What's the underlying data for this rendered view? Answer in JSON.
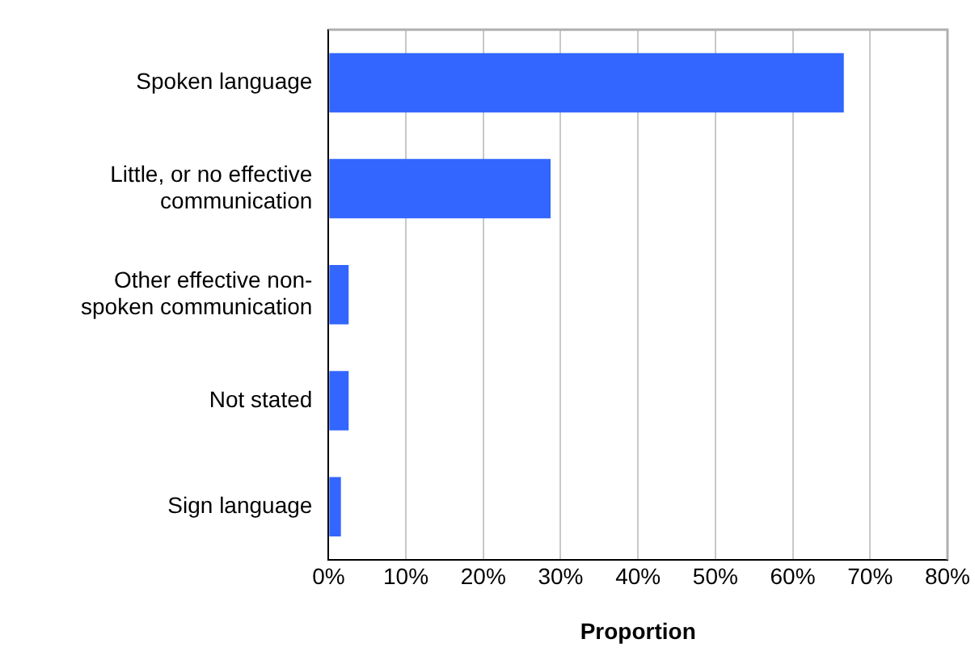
{
  "chart_data": {
    "type": "bar",
    "orientation": "horizontal",
    "xlabel": "Proportion",
    "categories": [
      "Spoken language",
      "Little, or no effective communication",
      "Other effective non-spoken communication",
      "Not stated",
      "Sign language"
    ],
    "values": [
      66.6,
      28.7,
      2.6,
      2.6,
      1.6
    ],
    "color": "#3366ff",
    "xlim": [
      0,
      80
    ],
    "xticks": [
      {
        "value": 0,
        "label": "0%"
      },
      {
        "value": 10,
        "label": "10%"
      },
      {
        "value": 20,
        "label": "20%"
      },
      {
        "value": 30,
        "label": "30%"
      },
      {
        "value": 40,
        "label": "40%"
      },
      {
        "value": 50,
        "label": "50%"
      },
      {
        "value": 60,
        "label": "60%"
      },
      {
        "value": 70,
        "label": "70%"
      },
      {
        "value": 80,
        "label": "80%"
      }
    ],
    "grid": "x",
    "legend": false
  }
}
